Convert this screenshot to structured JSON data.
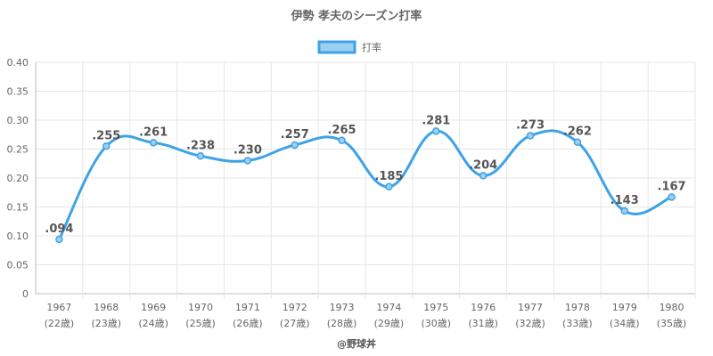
{
  "chart_data": {
    "type": "line",
    "title": "伊勢 孝夫のシーズン打率",
    "legend": {
      "label": "打率",
      "position": "top"
    },
    "x_years": [
      "1967",
      "1968",
      "1969",
      "1970",
      "1971",
      "1972",
      "1973",
      "1974",
      "1975",
      "1976",
      "1977",
      "1978",
      "1979",
      "1980"
    ],
    "x_ages": [
      "(22歳)",
      "(23歳)",
      "(24歳)",
      "(25歳)",
      "(26歳)",
      "(27歳)",
      "(28歳)",
      "(29歳)",
      "(30歳)",
      "(31歳)",
      "(32歳)",
      "(33歳)",
      "(34歳)",
      "(35歳)"
    ],
    "series": [
      {
        "name": "打率",
        "values": [
          0.094,
          0.255,
          0.261,
          0.238,
          0.23,
          0.257,
          0.265,
          0.185,
          0.281,
          0.204,
          0.273,
          0.262,
          0.143,
          0.167
        ],
        "labels": [
          ".094",
          ".255",
          ".261",
          ".238",
          ".230",
          ".257",
          ".265",
          ".185",
          ".281",
          ".204",
          ".273",
          ".262",
          ".143",
          ".167"
        ]
      }
    ],
    "ylim": [
      0,
      0.4
    ],
    "yticks": [
      0,
      0.05,
      0.1,
      0.15,
      0.2,
      0.25,
      0.3,
      0.35,
      0.4
    ],
    "ytick_labels": [
      "0",
      "0.05",
      "0.10",
      "0.15",
      "0.20",
      "0.25",
      "0.30",
      "0.35",
      "0.40"
    ],
    "grid": true,
    "line_color": "#3ea3e6",
    "fill_color": "#9ccff2"
  },
  "credit": "@野球丼"
}
